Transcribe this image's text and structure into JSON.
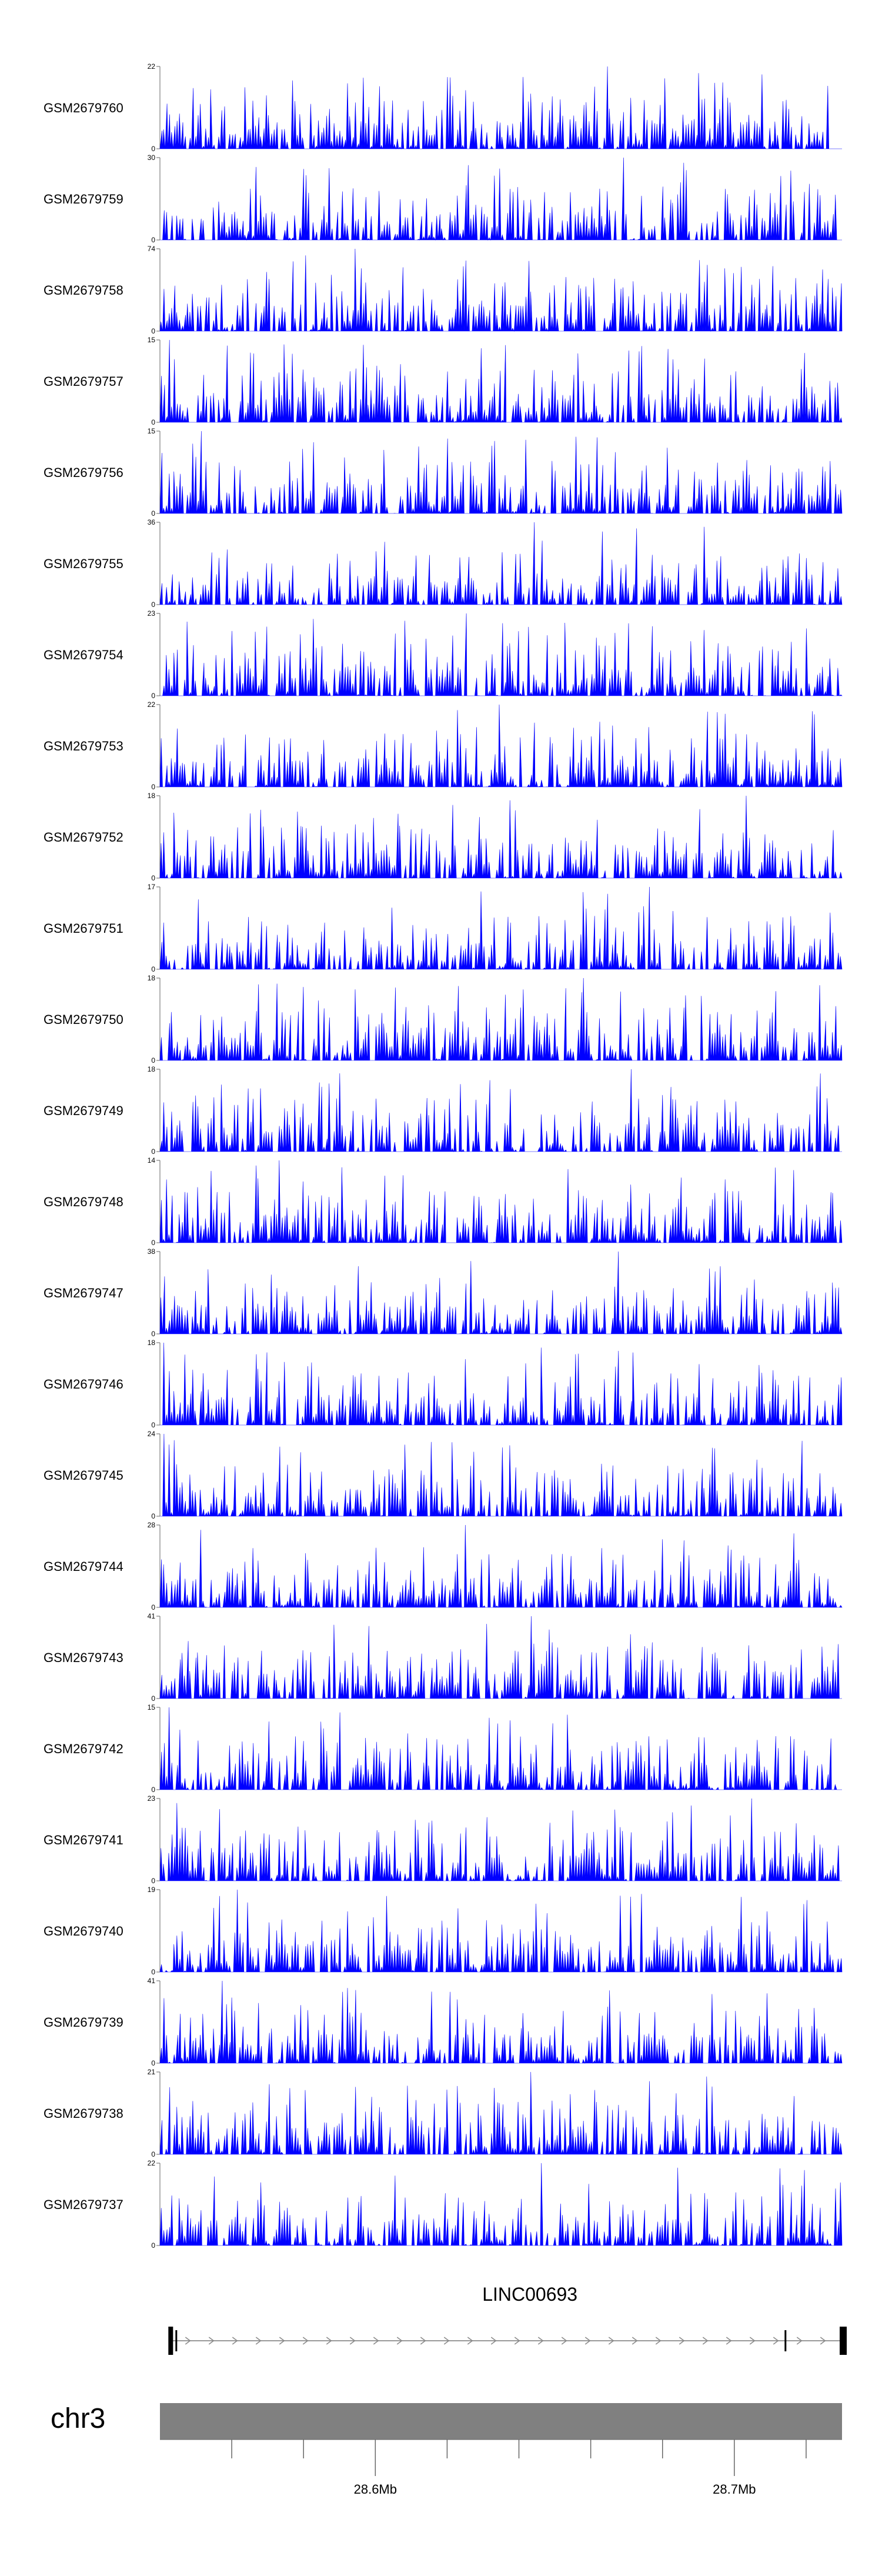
{
  "colors": {
    "signal": "#0000ff",
    "ideogram": "#808080",
    "gene": "#000000",
    "axis": "#666666"
  },
  "chart_data": {
    "type": "area",
    "title": "",
    "region": {
      "chromosome": "chr3",
      "start": 28540000,
      "end": 28730000
    },
    "tracks": [
      {
        "name": "GSM2679760",
        "ymax": 22,
        "ymin": 0,
        "ymax_label": "22",
        "ymin_label": "0"
      },
      {
        "name": "GSM2679759",
        "ymax": 30,
        "ymin": 0,
        "ymax_label": "30",
        "ymin_label": "0"
      },
      {
        "name": "GSM2679758",
        "ymax": 74,
        "ymin": 0,
        "ymax_label": "74",
        "ymin_label": "0"
      },
      {
        "name": "GSM2679757",
        "ymax": 15,
        "ymin": 0,
        "ymax_label": "15",
        "ymin_label": "0"
      },
      {
        "name": "GSM2679756",
        "ymax": 15,
        "ymin": 0,
        "ymax_label": "15",
        "ymin_label": "0"
      },
      {
        "name": "GSM2679755",
        "ymax": 36,
        "ymin": 0,
        "ymax_label": "36",
        "ymin_label": "0"
      },
      {
        "name": "GSM2679754",
        "ymax": 23,
        "ymin": 0,
        "ymax_label": "23",
        "ymin_label": "0"
      },
      {
        "name": "GSM2679753",
        "ymax": 22,
        "ymin": 0,
        "ymax_label": "22",
        "ymin_label": "0"
      },
      {
        "name": "GSM2679752",
        "ymax": 18,
        "ymin": 0,
        "ymax_label": "18",
        "ymin_label": "0"
      },
      {
        "name": "GSM2679751",
        "ymax": 17,
        "ymin": 0,
        "ymax_label": "17",
        "ymin_label": "0"
      },
      {
        "name": "GSM2679750",
        "ymax": 18,
        "ymin": 0,
        "ymax_label": "18",
        "ymin_label": "0"
      },
      {
        "name": "GSM2679749",
        "ymax": 18,
        "ymin": 0,
        "ymax_label": "18",
        "ymin_label": "0"
      },
      {
        "name": "GSM2679748",
        "ymax": 14,
        "ymin": 0,
        "ymax_label": "14",
        "ymin_label": "0"
      },
      {
        "name": "GSM2679747",
        "ymax": 38,
        "ymin": 0,
        "ymax_label": "38",
        "ymin_label": "0"
      },
      {
        "name": "GSM2679746",
        "ymax": 18,
        "ymin": 0,
        "ymax_label": "18",
        "ymin_label": "0"
      },
      {
        "name": "GSM2679745",
        "ymax": 24,
        "ymin": 0,
        "ymax_label": "24",
        "ymin_label": "0"
      },
      {
        "name": "GSM2679744",
        "ymax": 28,
        "ymin": 0,
        "ymax_label": "28",
        "ymin_label": "0"
      },
      {
        "name": "GSM2679743",
        "ymax": 41,
        "ymin": 0,
        "ymax_label": "41",
        "ymin_label": "0"
      },
      {
        "name": "GSM2679742",
        "ymax": 15,
        "ymin": 0,
        "ymax_label": "15",
        "ymin_label": "0"
      },
      {
        "name": "GSM2679741",
        "ymax": 23,
        "ymin": 0,
        "ymax_label": "23",
        "ymin_label": "0"
      },
      {
        "name": "GSM2679740",
        "ymax": 19,
        "ymin": 0,
        "ymax_label": "19",
        "ymin_label": "0"
      },
      {
        "name": "GSM2679739",
        "ymax": 41,
        "ymin": 0,
        "ymax_label": "41",
        "ymin_label": "0"
      },
      {
        "name": "GSM2679738",
        "ymax": 21,
        "ymin": 0,
        "ymax_label": "21",
        "ymin_label": "0"
      },
      {
        "name": "GSM2679737",
        "ymax": 22,
        "ymin": 0,
        "ymax_label": "22",
        "ymin_label": "0"
      }
    ],
    "gene": {
      "name": "LINC00693",
      "start": 28543000,
      "end": 28730000,
      "strand": "+"
    },
    "chromosome_label": "chr3",
    "axis_ticks": [
      {
        "pos": 28560000,
        "label": ""
      },
      {
        "pos": 28580000,
        "label": ""
      },
      {
        "pos": 28600000,
        "label": "28.6Mb"
      },
      {
        "pos": 28620000,
        "label": ""
      },
      {
        "pos": 28640000,
        "label": ""
      },
      {
        "pos": 28660000,
        "label": ""
      },
      {
        "pos": 28680000,
        "label": ""
      },
      {
        "pos": 28700000,
        "label": "28.7Mb"
      },
      {
        "pos": 28720000,
        "label": ""
      }
    ],
    "xlabel": "",
    "ylabel": ""
  }
}
